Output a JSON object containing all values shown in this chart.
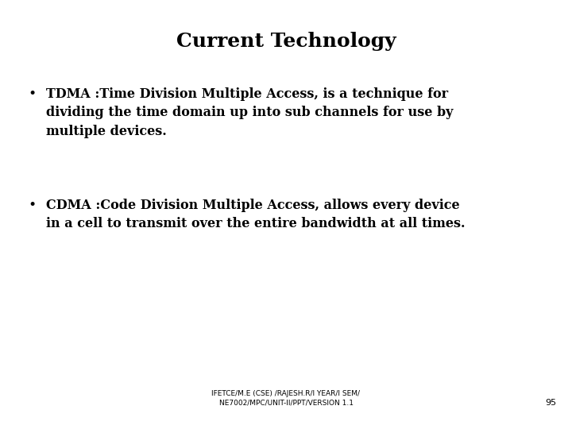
{
  "title": "Current Technology",
  "title_fontsize": 18,
  "title_fontweight": "bold",
  "bullet1_text": "TDMA :Time Division Multiple Access, is a technique for\ndividing the time domain up into sub channels for use by\nmultiple devices.",
  "bullet2_text": "CDMA :Code Division Multiple Access, allows every device\nin a cell to transmit over the entire bandwidth at all times.",
  "footer_text": "IFETCE/M.E (CSE) /RAJESH.R/I YEAR/I SEM/\nNE7002/MPC/UNIT-II/PPT/VERSION 1.1",
  "page_number": "95",
  "bg_color": "#ffffff",
  "text_color": "#000000",
  "body_fontsize": 11.5,
  "body_fontweight": "bold",
  "footer_fontsize": 6.5,
  "page_fontsize": 8
}
